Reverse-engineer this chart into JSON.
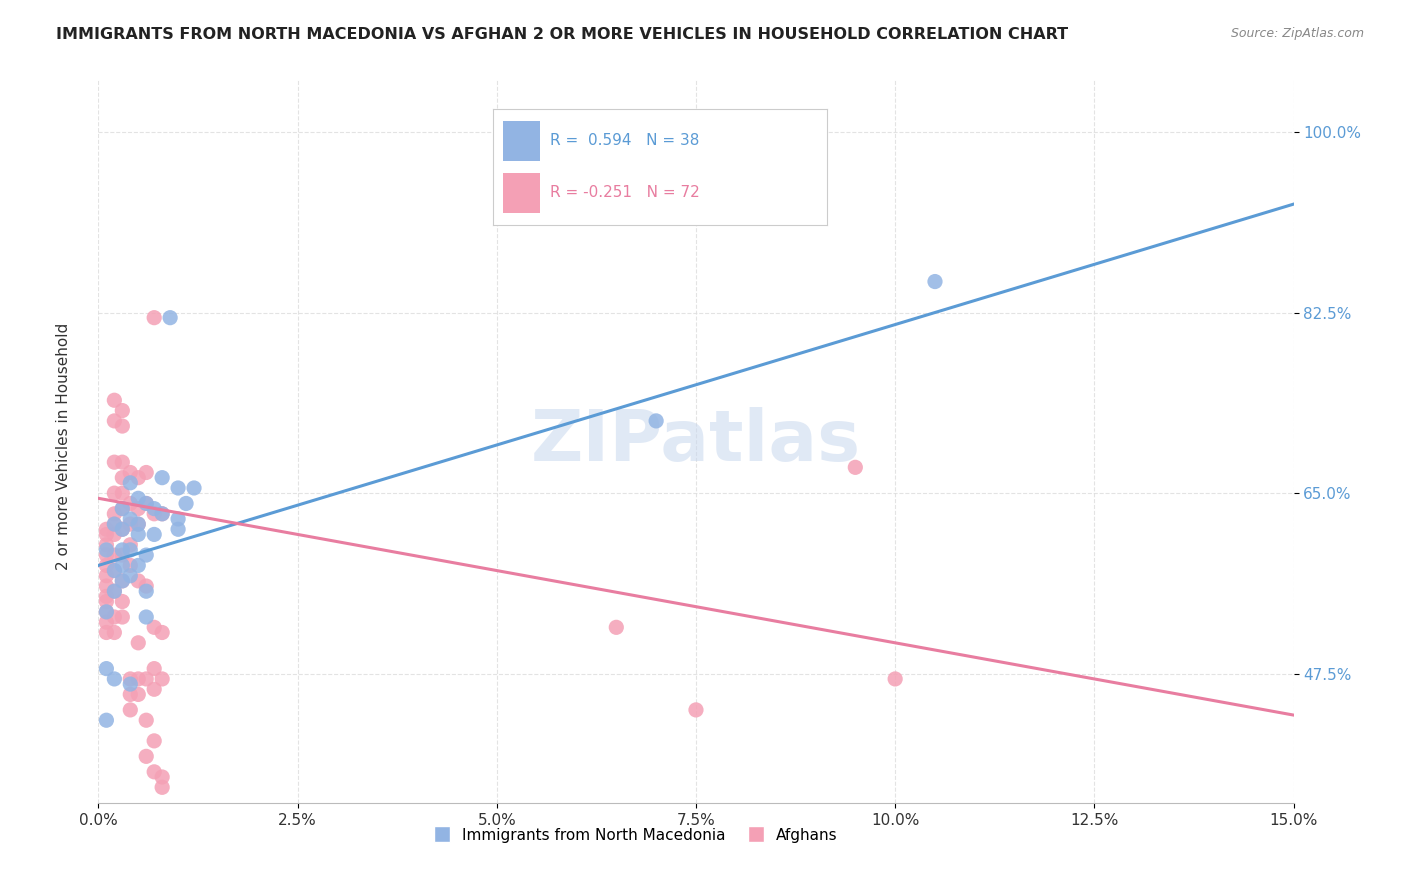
{
  "title": "IMMIGRANTS FROM NORTH MACEDONIA VS AFGHAN 2 OR MORE VEHICLES IN HOUSEHOLD CORRELATION CHART",
  "source": "Source: ZipAtlas.com",
  "ylabel": "2 or more Vehicles in Household",
  "yticks": [
    "47.5%",
    "65.0%",
    "82.5%",
    "100.0%"
  ],
  "ytick_vals": [
    0.475,
    0.65,
    0.825,
    1.0
  ],
  "xmin": 0.0,
  "xmax": 0.15,
  "ymin": 0.35,
  "ymax": 1.05,
  "legend_r1": "R =  0.594   N = 38",
  "legend_r2": "R = -0.251   N = 72",
  "color_blue": "#92B4E3",
  "color_pink": "#F4A0B5",
  "line_blue": "#5B9BD5",
  "line_pink": "#E87DA0",
  "blue_scatter": [
    [
      0.001,
      0.595
    ],
    [
      0.001,
      0.535
    ],
    [
      0.002,
      0.62
    ],
    [
      0.002,
      0.575
    ],
    [
      0.002,
      0.555
    ],
    [
      0.003,
      0.595
    ],
    [
      0.003,
      0.565
    ],
    [
      0.003,
      0.615
    ],
    [
      0.003,
      0.58
    ],
    [
      0.003,
      0.635
    ],
    [
      0.004,
      0.625
    ],
    [
      0.004,
      0.66
    ],
    [
      0.004,
      0.595
    ],
    [
      0.004,
      0.57
    ],
    [
      0.005,
      0.645
    ],
    [
      0.005,
      0.61
    ],
    [
      0.005,
      0.58
    ],
    [
      0.005,
      0.62
    ],
    [
      0.006,
      0.64
    ],
    [
      0.006,
      0.59
    ],
    [
      0.006,
      0.555
    ],
    [
      0.006,
      0.53
    ],
    [
      0.007,
      0.635
    ],
    [
      0.007,
      0.61
    ],
    [
      0.008,
      0.665
    ],
    [
      0.008,
      0.63
    ],
    [
      0.009,
      0.82
    ],
    [
      0.01,
      0.655
    ],
    [
      0.01,
      0.625
    ],
    [
      0.01,
      0.615
    ],
    [
      0.011,
      0.64
    ],
    [
      0.012,
      0.655
    ],
    [
      0.001,
      0.48
    ],
    [
      0.002,
      0.47
    ],
    [
      0.004,
      0.465
    ],
    [
      0.001,
      0.43
    ],
    [
      0.07,
      0.72
    ],
    [
      0.105,
      0.855
    ]
  ],
  "pink_scatter": [
    [
      0.001,
      0.615
    ],
    [
      0.001,
      0.61
    ],
    [
      0.001,
      0.6
    ],
    [
      0.001,
      0.59
    ],
    [
      0.001,
      0.58
    ],
    [
      0.001,
      0.57
    ],
    [
      0.001,
      0.56
    ],
    [
      0.001,
      0.55
    ],
    [
      0.001,
      0.545
    ],
    [
      0.001,
      0.535
    ],
    [
      0.001,
      0.525
    ],
    [
      0.001,
      0.515
    ],
    [
      0.002,
      0.74
    ],
    [
      0.002,
      0.72
    ],
    [
      0.002,
      0.68
    ],
    [
      0.002,
      0.65
    ],
    [
      0.002,
      0.63
    ],
    [
      0.002,
      0.62
    ],
    [
      0.002,
      0.61
    ],
    [
      0.002,
      0.59
    ],
    [
      0.002,
      0.575
    ],
    [
      0.002,
      0.555
    ],
    [
      0.002,
      0.53
    ],
    [
      0.002,
      0.515
    ],
    [
      0.003,
      0.73
    ],
    [
      0.003,
      0.715
    ],
    [
      0.003,
      0.68
    ],
    [
      0.003,
      0.665
    ],
    [
      0.003,
      0.65
    ],
    [
      0.003,
      0.635
    ],
    [
      0.003,
      0.615
    ],
    [
      0.003,
      0.59
    ],
    [
      0.003,
      0.565
    ],
    [
      0.003,
      0.545
    ],
    [
      0.003,
      0.53
    ],
    [
      0.004,
      0.67
    ],
    [
      0.004,
      0.64
    ],
    [
      0.004,
      0.62
    ],
    [
      0.004,
      0.6
    ],
    [
      0.004,
      0.58
    ],
    [
      0.004,
      0.47
    ],
    [
      0.004,
      0.455
    ],
    [
      0.004,
      0.44
    ],
    [
      0.005,
      0.665
    ],
    [
      0.005,
      0.635
    ],
    [
      0.005,
      0.62
    ],
    [
      0.005,
      0.565
    ],
    [
      0.005,
      0.505
    ],
    [
      0.005,
      0.47
    ],
    [
      0.005,
      0.455
    ],
    [
      0.006,
      0.67
    ],
    [
      0.006,
      0.64
    ],
    [
      0.006,
      0.56
    ],
    [
      0.006,
      0.47
    ],
    [
      0.006,
      0.43
    ],
    [
      0.006,
      0.395
    ],
    [
      0.007,
      0.82
    ],
    [
      0.007,
      0.63
    ],
    [
      0.007,
      0.52
    ],
    [
      0.007,
      0.48
    ],
    [
      0.007,
      0.46
    ],
    [
      0.007,
      0.41
    ],
    [
      0.007,
      0.38
    ],
    [
      0.008,
      0.63
    ],
    [
      0.008,
      0.515
    ],
    [
      0.008,
      0.47
    ],
    [
      0.008,
      0.375
    ],
    [
      0.008,
      0.365
    ],
    [
      0.065,
      0.52
    ],
    [
      0.075,
      0.44
    ],
    [
      0.095,
      0.675
    ],
    [
      0.1,
      0.47
    ]
  ],
  "blue_line": [
    [
      0.0,
      0.58
    ],
    [
      0.15,
      0.93
    ]
  ],
  "pink_line": [
    [
      0.0,
      0.645
    ],
    [
      0.15,
      0.435
    ]
  ],
  "watermark": "ZIPatlas",
  "background_color": "#FFFFFF",
  "grid_color": "#DDDDDD"
}
